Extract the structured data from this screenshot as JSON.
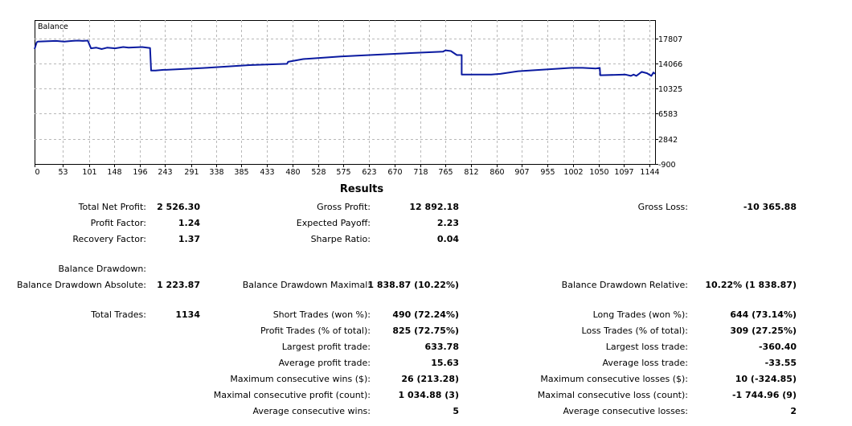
{
  "chart": {
    "title": "Balance",
    "line_color": "#0a1aa0",
    "y_ticks": [
      "17807",
      "14066",
      "10325",
      "6583",
      "2842",
      "-900"
    ],
    "x_ticks": [
      "0",
      "53",
      "101",
      "148",
      "196",
      "243",
      "291",
      "338",
      "385",
      "433",
      "480",
      "528",
      "575",
      "623",
      "670",
      "718",
      "765",
      "812",
      "860",
      "907",
      "955",
      "1002",
      "1050",
      "1097",
      "1144"
    ]
  },
  "chart_data": {
    "type": "line",
    "title": "Balance",
    "xlabel": "",
    "ylabel": "",
    "xlim": [
      0,
      1155
    ],
    "ylim": [
      -900,
      20500
    ],
    "grid": true,
    "series": [
      {
        "name": "Balance",
        "x": [
          0,
          4,
          6,
          25,
          40,
          55,
          70,
          80,
          90,
          99,
          105,
          115,
          125,
          135,
          150,
          165,
          175,
          200,
          215,
          217,
          225,
          240,
          245,
          320,
          400,
          470,
          472,
          500,
          570,
          600,
          700,
          760,
          765,
          775,
          786,
          795,
          795,
          850,
          867,
          867,
          900,
          1000,
          1020,
          1045,
          1052,
          1053,
          1100,
          1110,
          1115,
          1120,
          1130,
          1140,
          1148,
          1152,
          1155
        ],
        "y": [
          16200,
          17200,
          17300,
          17350,
          17400,
          17300,
          17400,
          17450,
          17400,
          17450,
          16300,
          16400,
          16200,
          16400,
          16300,
          16500,
          16400,
          16500,
          16350,
          13000,
          13000,
          13100,
          13100,
          13400,
          13800,
          14000,
          14300,
          14700,
          15100,
          15200,
          15600,
          15800,
          16000,
          15900,
          15300,
          15300,
          12400,
          12400,
          12500,
          12500,
          12900,
          13400,
          13400,
          13300,
          13400,
          12300,
          12400,
          12200,
          12400,
          12200,
          12800,
          12600,
          12200,
          12700,
          12500
        ]
      }
    ]
  },
  "results": {
    "title": "Results",
    "col1": [
      {
        "label": "Total Net Profit:",
        "value": "2 526.30"
      },
      {
        "label": "Profit Factor:",
        "value": "1.24"
      },
      {
        "label": "Recovery Factor:",
        "value": "1.37"
      },
      {
        "label": "Balance Drawdown:",
        "value": ""
      },
      {
        "label": "Balance Drawdown Absolute:",
        "value": "1 223.87"
      },
      {
        "label": "Total Trades:",
        "value": "1134"
      }
    ],
    "col2": [
      {
        "label": "Gross Profit:",
        "value": "12 892.18"
      },
      {
        "label": "Expected Payoff:",
        "value": "2.23"
      },
      {
        "label": "Sharpe Ratio:",
        "value": "0.04"
      },
      {
        "label": "Balance Drawdown Maximal:",
        "value": "1 838.87 (10.22%)"
      },
      {
        "label": "Short Trades (won %):",
        "value": "490 (72.24%)"
      },
      {
        "label": "Profit Trades (% of total):",
        "value": "825 (72.75%)"
      },
      {
        "label": "Largest profit trade:",
        "value": "633.78"
      },
      {
        "label": "Average profit trade:",
        "value": "15.63"
      },
      {
        "label": "Maximum consecutive wins ($):",
        "value": "26 (213.28)"
      },
      {
        "label": "Maximal consecutive profit (count):",
        "value": "1 034.88 (3)"
      },
      {
        "label": "Average consecutive wins:",
        "value": "5"
      }
    ],
    "col3": [
      {
        "label": "Gross Loss:",
        "value": "-10 365.88"
      },
      {
        "label": "Balance Drawdown Relative:",
        "value": "10.22% (1 838.87)"
      },
      {
        "label": "Long Trades (won %):",
        "value": "644 (73.14%)"
      },
      {
        "label": "Loss Trades (% of total):",
        "value": "309 (27.25%)"
      },
      {
        "label": "Largest loss trade:",
        "value": "-360.40"
      },
      {
        "label": "Average loss trade:",
        "value": "-33.55"
      },
      {
        "label": "Maximum consecutive losses ($):",
        "value": "10 (-324.85)"
      },
      {
        "label": "Maximal consecutive loss (count):",
        "value": "-1 744.96 (9)"
      },
      {
        "label": "Average consecutive losses:",
        "value": "2"
      }
    ]
  }
}
